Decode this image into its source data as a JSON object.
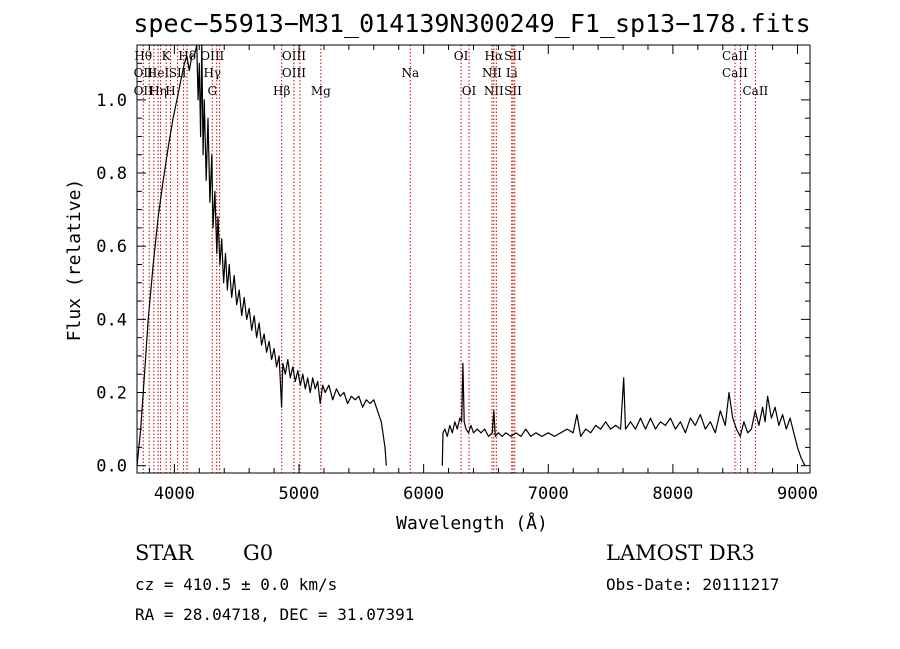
{
  "chart_data": {
    "type": "line",
    "title": "spec−55913−M31_014139N300249_F1_sp13−178.fits",
    "xlabel": "Wavelength (Å)",
    "ylabel": "Flux (relative)",
    "xlim": [
      3700,
      9100
    ],
    "ylim": [
      -0.02,
      1.15
    ],
    "grid": false,
    "x_ticks": [
      4000,
      5000,
      6000,
      7000,
      8000,
      9000
    ],
    "x_tick_labels": [
      "4000",
      "5000",
      "6000",
      "7000",
      "8000",
      "9000"
    ],
    "y_ticks": [
      0.0,
      0.2,
      0.4,
      0.6,
      0.8,
      1.0
    ],
    "y_tick_labels": [
      "0.0",
      "0.2",
      "0.4",
      "0.6",
      "0.8",
      "1.0"
    ],
    "series": [
      {
        "points": [
          [
            3700,
            0.0
          ],
          [
            3730,
            0.1
          ],
          [
            3760,
            0.25
          ],
          [
            3790,
            0.4
          ],
          [
            3830,
            0.55
          ],
          [
            3870,
            0.68
          ],
          [
            3910,
            0.78
          ],
          [
            3950,
            0.87
          ],
          [
            3990,
            0.95
          ],
          [
            4020,
            1.0
          ],
          [
            4050,
            1.05
          ],
          [
            4080,
            1.1
          ],
          [
            4100,
            1.12
          ],
          [
            4120,
            1.08
          ],
          [
            4140,
            1.12
          ],
          [
            4160,
            1.12
          ],
          [
            4180,
            1.15
          ],
          [
            4190,
            1.0
          ],
          [
            4200,
            1.1
          ],
          [
            4210,
            0.9
          ],
          [
            4220,
            1.15
          ],
          [
            4230,
            0.85
          ],
          [
            4240,
            1.0
          ],
          [
            4255,
            0.78
          ],
          [
            4270,
            0.95
          ],
          [
            4285,
            0.72
          ],
          [
            4300,
            0.85
          ],
          [
            4310,
            0.65
          ],
          [
            4325,
            0.75
          ],
          [
            4340,
            0.58
          ],
          [
            4350,
            0.68
          ],
          [
            4365,
            0.55
          ],
          [
            4380,
            0.62
          ],
          [
            4395,
            0.5
          ],
          [
            4410,
            0.58
          ],
          [
            4425,
            0.48
          ],
          [
            4440,
            0.55
          ],
          [
            4460,
            0.46
          ],
          [
            4480,
            0.52
          ],
          [
            4500,
            0.44
          ],
          [
            4520,
            0.48
          ],
          [
            4540,
            0.41
          ],
          [
            4560,
            0.46
          ],
          [
            4580,
            0.4
          ],
          [
            4600,
            0.43
          ],
          [
            4620,
            0.37
          ],
          [
            4640,
            0.41
          ],
          [
            4660,
            0.35
          ],
          [
            4680,
            0.39
          ],
          [
            4700,
            0.33
          ],
          [
            4720,
            0.36
          ],
          [
            4740,
            0.31
          ],
          [
            4760,
            0.34
          ],
          [
            4780,
            0.29
          ],
          [
            4800,
            0.32
          ],
          [
            4820,
            0.27
          ],
          [
            4840,
            0.3
          ],
          [
            4860,
            0.16
          ],
          [
            4870,
            0.28
          ],
          [
            4890,
            0.25
          ],
          [
            4910,
            0.29
          ],
          [
            4930,
            0.24
          ],
          [
            4950,
            0.27
          ],
          [
            4970,
            0.23
          ],
          [
            4990,
            0.26
          ],
          [
            5010,
            0.22
          ],
          [
            5030,
            0.25
          ],
          [
            5050,
            0.21
          ],
          [
            5070,
            0.24
          ],
          [
            5090,
            0.2
          ],
          [
            5110,
            0.24
          ],
          [
            5130,
            0.21
          ],
          [
            5150,
            0.23
          ],
          [
            5170,
            0.17
          ],
          [
            5190,
            0.22
          ],
          [
            5210,
            0.2
          ],
          [
            5240,
            0.22
          ],
          [
            5270,
            0.18
          ],
          [
            5300,
            0.21
          ],
          [
            5330,
            0.19
          ],
          [
            5360,
            0.2
          ],
          [
            5390,
            0.17
          ],
          [
            5420,
            0.19
          ],
          [
            5450,
            0.18
          ],
          [
            5480,
            0.19
          ],
          [
            5510,
            0.16
          ],
          [
            5540,
            0.18
          ],
          [
            5570,
            0.17
          ],
          [
            5600,
            0.18
          ],
          [
            5630,
            0.15
          ],
          [
            5660,
            0.12
          ],
          [
            5690,
            0.05
          ],
          [
            5700,
            0.0
          ]
        ]
      },
      {
        "points": [
          [
            6150,
            0.0
          ],
          [
            6155,
            0.09
          ],
          [
            6170,
            0.1
          ],
          [
            6190,
            0.08
          ],
          [
            6210,
            0.11
          ],
          [
            6230,
            0.09
          ],
          [
            6250,
            0.12
          ],
          [
            6270,
            0.1
          ],
          [
            6290,
            0.13
          ],
          [
            6305,
            0.12
          ],
          [
            6315,
            0.28
          ],
          [
            6325,
            0.12
          ],
          [
            6340,
            0.1
          ],
          [
            6360,
            0.09
          ],
          [
            6380,
            0.11
          ],
          [
            6400,
            0.09
          ],
          [
            6430,
            0.1
          ],
          [
            6460,
            0.09
          ],
          [
            6490,
            0.1
          ],
          [
            6520,
            0.08
          ],
          [
            6550,
            0.09
          ],
          [
            6563,
            0.15
          ],
          [
            6575,
            0.08
          ],
          [
            6600,
            0.09
          ],
          [
            6630,
            0.08
          ],
          [
            6660,
            0.09
          ],
          [
            6700,
            0.08
          ],
          [
            6740,
            0.09
          ],
          [
            6780,
            0.08
          ],
          [
            6820,
            0.1
          ],
          [
            6860,
            0.08
          ],
          [
            6900,
            0.09
          ],
          [
            6950,
            0.08
          ],
          [
            7000,
            0.09
          ],
          [
            7050,
            0.08
          ],
          [
            7100,
            0.09
          ],
          [
            7150,
            0.1
          ],
          [
            7200,
            0.09
          ],
          [
            7230,
            0.14
          ],
          [
            7260,
            0.08
          ],
          [
            7300,
            0.1
          ],
          [
            7340,
            0.09
          ],
          [
            7380,
            0.11
          ],
          [
            7420,
            0.1
          ],
          [
            7460,
            0.12
          ],
          [
            7500,
            0.1
          ],
          [
            7540,
            0.11
          ],
          [
            7580,
            0.1
          ],
          [
            7605,
            0.24
          ],
          [
            7620,
            0.1
          ],
          [
            7660,
            0.12
          ],
          [
            7700,
            0.1
          ],
          [
            7740,
            0.13
          ],
          [
            7780,
            0.1
          ],
          [
            7820,
            0.13
          ],
          [
            7860,
            0.1
          ],
          [
            7900,
            0.12
          ],
          [
            7940,
            0.11
          ],
          [
            7980,
            0.13
          ],
          [
            8020,
            0.1
          ],
          [
            8060,
            0.12
          ],
          [
            8100,
            0.09
          ],
          [
            8140,
            0.13
          ],
          [
            8180,
            0.11
          ],
          [
            8220,
            0.14
          ],
          [
            8260,
            0.1
          ],
          [
            8300,
            0.12
          ],
          [
            8340,
            0.09
          ],
          [
            8380,
            0.15
          ],
          [
            8420,
            0.11
          ],
          [
            8450,
            0.2
          ],
          [
            8480,
            0.13
          ],
          [
            8510,
            0.1
          ],
          [
            8540,
            0.08
          ],
          [
            8570,
            0.12
          ],
          [
            8600,
            0.09
          ],
          [
            8630,
            0.1
          ],
          [
            8660,
            0.15
          ],
          [
            8690,
            0.11
          ],
          [
            8720,
            0.16
          ],
          [
            8740,
            0.12
          ],
          [
            8760,
            0.19
          ],
          [
            8790,
            0.13
          ],
          [
            8820,
            0.16
          ],
          [
            8850,
            0.11
          ],
          [
            8880,
            0.14
          ],
          [
            8910,
            0.1
          ],
          [
            8940,
            0.13
          ],
          [
            8970,
            0.09
          ],
          [
            9000,
            0.05
          ],
          [
            9030,
            0.02
          ],
          [
            9060,
            0.0
          ]
        ]
      }
    ],
    "lines": [
      {
        "wavelength": 3750,
        "labels": [
          "Hθ",
          "OII",
          "OII"
        ]
      },
      {
        "wavelength": 3798,
        "labels": [
          "",
          "",
          ""
        ]
      },
      {
        "wavelength": 3835,
        "labels": [
          "",
          "",
          ""
        ]
      },
      {
        "wavelength": 3869,
        "labels": [
          "",
          "HeI",
          "Hη"
        ]
      },
      {
        "wavelength": 3889,
        "labels": [
          "",
          "",
          ""
        ]
      },
      {
        "wavelength": 3934,
        "labels": [
          "K",
          "",
          ""
        ]
      },
      {
        "wavelength": 3969,
        "labels": [
          "",
          "",
          "H"
        ]
      },
      {
        "wavelength": 4026,
        "labels": [
          "",
          "SII",
          ""
        ]
      },
      {
        "wavelength": 4072,
        "labels": [
          "",
          "",
          ""
        ]
      },
      {
        "wavelength": 4102,
        "labels": [
          "Hδ",
          "",
          ""
        ]
      },
      {
        "wavelength": 4304,
        "labels": [
          "OIII",
          "Hγ",
          "G"
        ]
      },
      {
        "wavelength": 4340,
        "labels": [
          "",
          "",
          ""
        ]
      },
      {
        "wavelength": 4363,
        "labels": [
          "",
          "",
          ""
        ]
      },
      {
        "wavelength": 4861,
        "labels": [
          "",
          "",
          "Hβ"
        ]
      },
      {
        "wavelength": 4959,
        "labels": [
          "OIII",
          "OIII",
          ""
        ]
      },
      {
        "wavelength": 5007,
        "labels": [
          "",
          "",
          ""
        ]
      },
      {
        "wavelength": 5175,
        "labels": [
          "",
          "",
          "Mg"
        ]
      },
      {
        "wavelength": 5893,
        "labels": [
          "",
          "Na",
          ""
        ]
      },
      {
        "wavelength": 6300,
        "labels": [
          "OI",
          "",
          ""
        ]
      },
      {
        "wavelength": 6364,
        "labels": [
          "",
          "",
          "OI"
        ]
      },
      {
        "wavelength": 6548,
        "labels": [
          "",
          "NII",
          ""
        ]
      },
      {
        "wavelength": 6563,
        "labels": [
          "Hα",
          "",
          "NII"
        ]
      },
      {
        "wavelength": 6583,
        "labels": [
          "",
          "",
          ""
        ]
      },
      {
        "wavelength": 6707,
        "labels": [
          "",
          "Li",
          ""
        ]
      },
      {
        "wavelength": 6717,
        "labels": [
          "SII",
          "",
          "SII"
        ]
      },
      {
        "wavelength": 6731,
        "labels": [
          "",
          "",
          ""
        ]
      },
      {
        "wavelength": 8498,
        "labels": [
          "CaII",
          "CaII",
          ""
        ]
      },
      {
        "wavelength": 8542,
        "labels": [
          "",
          "",
          ""
        ]
      },
      {
        "wavelength": 8662,
        "labels": [
          "",
          "",
          "CaII"
        ]
      }
    ],
    "line_color": "#cc0000",
    "spectrum_color": "#000000"
  },
  "info": {
    "object_class": "STAR",
    "subclass": "G0",
    "survey": "LAMOST DR3",
    "velocity": "cz = 410.5 ± 0.0 km/s",
    "obs_date": "Obs-Date: 20111217",
    "coordinates": "RA =  28.04718, DEC =  31.07391"
  }
}
